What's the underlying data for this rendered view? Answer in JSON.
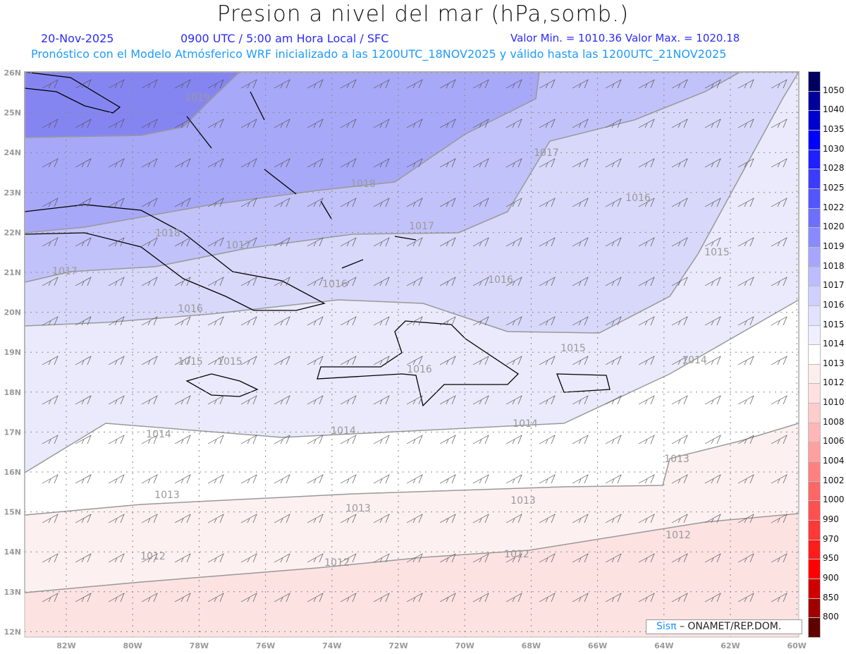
{
  "title": "Presion a nivel del mar (hPa,somb.)",
  "date": "20-Nov-2025",
  "time": "0900 UTC / 5:00 am Hora Local / SFC",
  "minmax": "Valor Min. = 1010.36  Valor Max. = 1020.18",
  "forecast": "Pronóstico con el Modelo Atmósferico WRF inicializado a las 1200UTC_18NOV2025 y válido hasta las  1200UTC_21NOV2025",
  "lat_labels": [
    "26N",
    "25N",
    "24N",
    "23N",
    "22N",
    "21N",
    "20N",
    "19N",
    "18N",
    "17N",
    "16N",
    "15N",
    "14N",
    "13N",
    "12N"
  ],
  "lon_labels": [
    "82W",
    "80W",
    "78W",
    "76W",
    "74W",
    "72W",
    "70W",
    "68W",
    "66W",
    "64W",
    "62W",
    "60W"
  ],
  "colorbar": {
    "levels": [
      "1050",
      "1040",
      "1035",
      "1030",
      "1028",
      "1025",
      "1022",
      "1020",
      "1019",
      "1018",
      "1017",
      "1016",
      "1015",
      "1014",
      "1013",
      "1012",
      "1010",
      "1008",
      "1006",
      "1004",
      "1002",
      "1000",
      "990",
      "970",
      "950",
      "900",
      "850",
      "800"
    ],
    "colors": [
      "#000060",
      "#00009a",
      "#0000d0",
      "#0000ff",
      "#1f1fff",
      "#3c3cff",
      "#5555ff",
      "#6e6eff",
      "#8a8aff",
      "#a6a6ff",
      "#bcbcff",
      "#d0d0ff",
      "#e2e2ff",
      "#efefff",
      "#ffffff",
      "#fdeeee",
      "#ffe0e0",
      "#ffcccc",
      "#ffb6b6",
      "#ffa0a0",
      "#ff8080",
      "#ff6666",
      "#ff5050",
      "#ff3838",
      "#ff1c1c",
      "#ff0000",
      "#d00000",
      "#a00000",
      "#600000"
    ]
  },
  "band_colors": {
    "1019": "#8585f2",
    "1018": "#a8a8f8",
    "1017": "#c2c2fa",
    "1016": "#d8d8fa",
    "1015": "#eaeafc",
    "1014": "#ffffff",
    "1013": "#fdf0f0",
    "1012": "#fde2e2"
  },
  "contour_labels": [
    "1019",
    "1018",
    "1017",
    "1016",
    "1018",
    "1017",
    "1017",
    "1015",
    "1017",
    "1016",
    "1016",
    "1016",
    "1015",
    "1014",
    "1015",
    "1015",
    "1016",
    "1014",
    "1014",
    "1014",
    "1013",
    "1013",
    "1013",
    "1013",
    "1012",
    "1012",
    "1012",
    "1012"
  ],
  "logo": {
    "brand": "Sisπ",
    "text": " –  ONAMET/REP.DOM."
  }
}
